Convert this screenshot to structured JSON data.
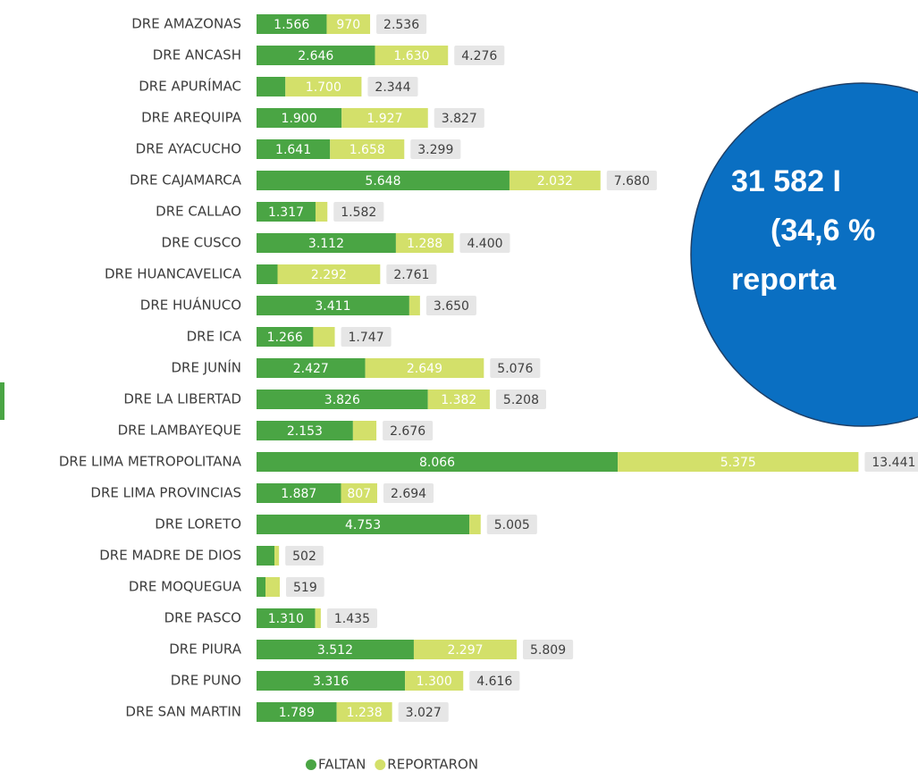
{
  "chart_data": {
    "type": "stacked-bar-horizontal",
    "categories": [
      "DRE AMAZONAS",
      "DRE ANCASH",
      "DRE APURÍMAC",
      "DRE AREQUIPA",
      "DRE AYACUCHO",
      "DRE CAJAMARCA",
      "DRE CALLAO",
      "DRE CUSCO",
      "DRE HUANCAVELICA",
      "DRE HUÁNUCO",
      "DRE ICA",
      "DRE JUNÍN",
      "DRE LA LIBERTAD",
      "DRE LAMBAYEQUE",
      "DRE LIMA METROPOLITANA",
      "DRE LIMA PROVINCIAS",
      "DRE LORETO",
      "DRE MADRE DE DIOS",
      "DRE MOQUEGUA",
      "DRE PASCO",
      "DRE PIURA",
      "DRE PUNO",
      "DRE SAN MARTIN"
    ],
    "series": [
      {
        "name": "FALTAN",
        "color": "#4aa544",
        "values": [
          1566,
          2646,
          644,
          1900,
          1641,
          5648,
          1317,
          3112,
          469,
          3411,
          1266,
          2427,
          3826,
          2153,
          8066,
          1887,
          4753,
          400,
          200,
          1310,
          3512,
          3316,
          1789
        ],
        "value_labels": [
          "1.566",
          "2.646",
          null,
          "1.900",
          "1.641",
          "5.648",
          "1.317",
          "3.112",
          null,
          "3.411",
          "1.266",
          "2.427",
          "3.826",
          "2.153",
          "8.066",
          "1.887",
          "4.753",
          null,
          null,
          "1.310",
          "3.512",
          "3.316",
          "1.789"
        ]
      },
      {
        "name": "REPORTARON",
        "color": "#d3e06a",
        "values": [
          970,
          1630,
          1700,
          1927,
          1658,
          2032,
          265,
          1288,
          2292,
          239,
          481,
          2649,
          1382,
          523,
          5375,
          807,
          252,
          102,
          319,
          125,
          2297,
          1300,
          1238
        ],
        "value_labels": [
          "970",
          "1.630",
          "1.700",
          "1.927",
          "1.658",
          "2.032",
          null,
          "1.288",
          "2.292",
          null,
          null,
          "2.649",
          "1.382",
          null,
          "5.375",
          "807",
          null,
          null,
          null,
          null,
          "2.297",
          "1.300",
          "1.238"
        ]
      }
    ],
    "totals": {
      "values": [
        2536,
        4276,
        2344,
        3827,
        3299,
        7680,
        1582,
        4400,
        2761,
        3650,
        1747,
        5076,
        5208,
        2676,
        13441,
        2694,
        5005,
        502,
        519,
        1435,
        5809,
        4616,
        3027
      ],
      "value_labels": [
        "2.536",
        "4.276",
        "2.344",
        "3.827",
        "3.299",
        "7.680",
        "1.582",
        "4.400",
        "2.761",
        "3.650",
        "1.747",
        "5.076",
        "5.208",
        "2.676",
        "13.441",
        "2.694",
        "5.005",
        "502",
        "519",
        "1.435",
        "5.809",
        "4.616",
        "3.027"
      ]
    },
    "annotations": [
      "31 582 I",
      "(34,6 %",
      "reporta"
    ]
  }
}
